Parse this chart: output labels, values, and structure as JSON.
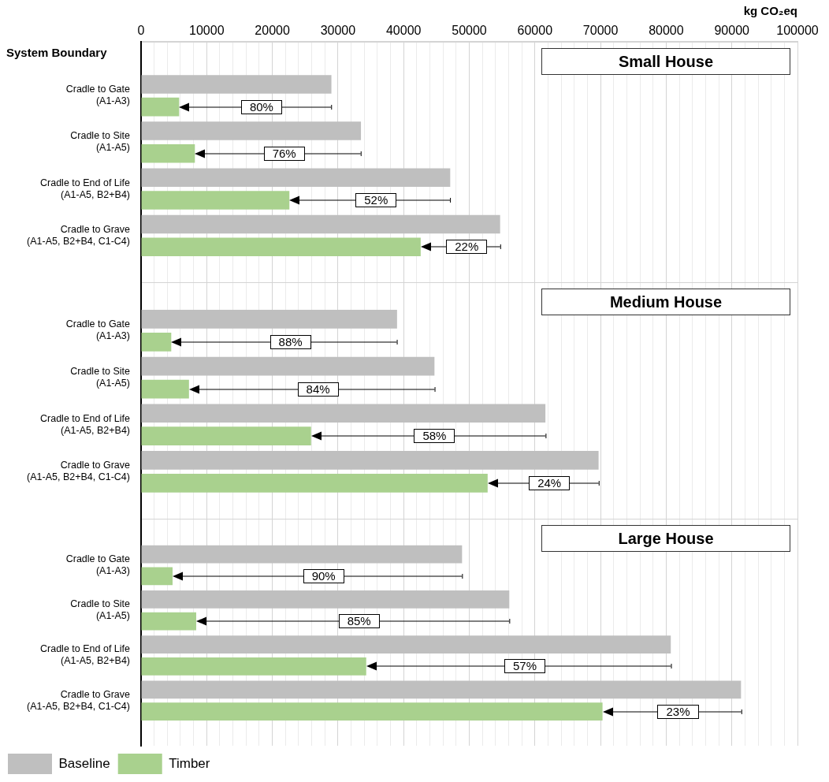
{
  "chart_data": [
    {
      "type": "bar",
      "orientation": "horizontal",
      "title": "Small House",
      "xlabel": "kg CO₂eq",
      "ylabel": "System Boundary",
      "grid": "x",
      "categories": [
        "Cradle to Gate\n(A1-A3)",
        "Cradle to Site\n(A1-A5)",
        "Cradle to End of Life\n(A1-A5, B2+B4)",
        "Cradle to Grave\n(A1-A5, B2+B4, C1-C4)"
      ],
      "series": [
        {
          "color": "#bfbfbf",
          "values": [
            29000,
            33500,
            47100,
            54700
          ]
        },
        {
          "color": "#a9d18e",
          "values": [
            5800,
            8200,
            22600,
            42600
          ]
        }
      ],
      "xlim": [
        0,
        100000
      ],
      "xticks": [
        0,
        {
          "value": 2000,
          "label": null
        },
        {
          "value": 4000,
          "label": null
        },
        {
          "value": 6000,
          "label": null
        },
        {
          "value": 8000,
          "label": null
        },
        10000,
        {
          "value": 12000,
          "label": null
        },
        {
          "value": 14000,
          "label": null
        },
        {
          "value": 16000,
          "label": null
        },
        {
          "value": 18000,
          "label": null
        },
        20000,
        {
          "value": 22000,
          "label": null
        },
        {
          "value": 24000,
          "label": null
        },
        {
          "value": 26000,
          "label": null
        },
        {
          "value": 28000,
          "label": null
        },
        30000,
        {
          "value": 32000,
          "label": null
        },
        {
          "value": 34000,
          "label": null
        },
        {
          "value": 36000,
          "label": null
        },
        {
          "value": 38000,
          "label": null
        },
        40000,
        {
          "value": 42000,
          "label": null
        },
        {
          "value": 44000,
          "label": null
        },
        {
          "value": 46000,
          "label": null
        },
        {
          "value": 48000,
          "label": null
        },
        50000,
        {
          "value": 52000,
          "label": null
        },
        {
          "value": 54000,
          "label": null
        },
        {
          "value": 56000,
          "label": null
        },
        {
          "value": 58000,
          "label": null
        },
        60000,
        {
          "value": 62000,
          "label": null
        },
        {
          "value": 64000,
          "label": null
        },
        {
          "value": 66000,
          "label": null
        },
        {
          "value": 68000,
          "label": null
        },
        70000,
        {
          "value": 72000,
          "label": null
        },
        {
          "value": 74000,
          "label": null
        },
        {
          "value": 76000,
          "label": null
        },
        {
          "value": 78000,
          "label": null
        },
        80000,
        {
          "value": 82000,
          "label": null
        },
        {
          "value": 84000,
          "label": null
        },
        {
          "value": 86000,
          "label": null
        },
        {
          "value": 88000,
          "label": null
        },
        90000,
        {
          "value": 92000,
          "label": null
        },
        {
          "value": 94000,
          "label": null
        },
        {
          "value": 96000,
          "label": null
        },
        {
          "value": 98000,
          "label": null
        },
        100000
      ],
      "annotations": [
        "80%",
        "76%",
        "52%",
        "22%"
      ]
    },
    {
      "type": "bar",
      "orientation": "horizontal",
      "title": "Medium House",
      "grid": "x",
      "tick_labels": "y",
      "categories": [
        "Cradle to Gate\n(A1-A3)",
        "Cradle to Site\n(A1-A5)",
        "Cradle to End of Life\n(A1-A5, B2+B4)",
        "Cradle to Grave\n(A1-A5, B2+B4, C1-C4)"
      ],
      "series": [
        {
          "color": "#bfbfbf",
          "values": [
            39000,
            44700,
            61600,
            69700
          ]
        },
        {
          "color": "#a9d18e",
          "values": [
            4600,
            7300,
            25900,
            52800
          ]
        }
      ],
      "xlim": [
        0,
        100000
      ],
      "xticks": [
        0,
        {
          "value": 2000,
          "label": null
        },
        {
          "value": 4000,
          "label": null
        },
        {
          "value": 6000,
          "label": null
        },
        {
          "value": 8000,
          "label": null
        },
        10000,
        {
          "value": 12000,
          "label": null
        },
        {
          "value": 14000,
          "label": null
        },
        {
          "value": 16000,
          "label": null
        },
        {
          "value": 18000,
          "label": null
        },
        20000,
        {
          "value": 22000,
          "label": null
        },
        {
          "value": 24000,
          "label": null
        },
        {
          "value": 26000,
          "label": null
        },
        {
          "value": 28000,
          "label": null
        },
        30000,
        {
          "value": 32000,
          "label": null
        },
        {
          "value": 34000,
          "label": null
        },
        {
          "value": 36000,
          "label": null
        },
        {
          "value": 38000,
          "label": null
        },
        40000,
        {
          "value": 42000,
          "label": null
        },
        {
          "value": 44000,
          "label": null
        },
        {
          "value": 46000,
          "label": null
        },
        {
          "value": 48000,
          "label": null
        },
        50000,
        {
          "value": 52000,
          "label": null
        },
        {
          "value": 54000,
          "label": null
        },
        {
          "value": 56000,
          "label": null
        },
        {
          "value": 58000,
          "label": null
        },
        60000,
        {
          "value": 62000,
          "label": null
        },
        {
          "value": 64000,
          "label": null
        },
        {
          "value": 66000,
          "label": null
        },
        {
          "value": 68000,
          "label": null
        },
        70000,
        {
          "value": 72000,
          "label": null
        },
        {
          "value": 74000,
          "label": null
        },
        {
          "value": 76000,
          "label": null
        },
        {
          "value": 78000,
          "label": null
        },
        80000,
        {
          "value": 82000,
          "label": null
        },
        {
          "value": 84000,
          "label": null
        },
        {
          "value": 86000,
          "label": null
        },
        {
          "value": 88000,
          "label": null
        },
        90000,
        {
          "value": 92000,
          "label": null
        },
        {
          "value": 94000,
          "label": null
        },
        {
          "value": 96000,
          "label": null
        },
        {
          "value": 98000,
          "label": null
        },
        100000
      ],
      "annotations": [
        "88%",
        "84%",
        "58%",
        "24%"
      ]
    },
    {
      "type": "bar",
      "orientation": "horizontal",
      "title": "Large House",
      "grid": "x",
      "tick_labels": "y",
      "legend": "bottom",
      "categories": [
        "Cradle to Gate\n(A1-A3)",
        "Cradle to Site\n(A1-A5)",
        "Cradle to End of Life\n(A1-A5, B2+B4)",
        "Cradle to Grave\n(A1-A5, B2+B4, C1-C4)"
      ],
      "series": [
        {
          "name": "Baseline",
          "color": "#bfbfbf",
          "values": [
            48900,
            56100,
            80700,
            91400
          ]
        },
        {
          "name": "Timber",
          "color": "#a9d18e",
          "values": [
            4800,
            8400,
            34300,
            70300
          ]
        }
      ],
      "xlim": [
        0,
        100000
      ],
      "xticks": [
        0,
        {
          "value": 2000,
          "label": null
        },
        {
          "value": 4000,
          "label": null
        },
        {
          "value": 6000,
          "label": null
        },
        {
          "value": 8000,
          "label": null
        },
        10000,
        {
          "value": 12000,
          "label": null
        },
        {
          "value": 14000,
          "label": null
        },
        {
          "value": 16000,
          "label": null
        },
        {
          "value": 18000,
          "label": null
        },
        20000,
        {
          "value": 22000,
          "label": null
        },
        {
          "value": 24000,
          "label": null
        },
        {
          "value": 26000,
          "label": null
        },
        {
          "value": 28000,
          "label": null
        },
        30000,
        {
          "value": 32000,
          "label": null
        },
        {
          "value": 34000,
          "label": null
        },
        {
          "value": 36000,
          "label": null
        },
        {
          "value": 38000,
          "label": null
        },
        40000,
        {
          "value": 42000,
          "label": null
        },
        {
          "value": 44000,
          "label": null
        },
        {
          "value": 46000,
          "label": null
        },
        {
          "value": 48000,
          "label": null
        },
        50000,
        {
          "value": 52000,
          "label": null
        },
        {
          "value": 54000,
          "label": null
        },
        {
          "value": 56000,
          "label": null
        },
        {
          "value": 58000,
          "label": null
        },
        60000,
        {
          "value": 62000,
          "label": null
        },
        {
          "value": 64000,
          "label": null
        },
        {
          "value": 66000,
          "label": null
        },
        {
          "value": 68000,
          "label": null
        },
        70000,
        {
          "value": 72000,
          "label": null
        },
        {
          "value": 74000,
          "label": null
        },
        {
          "value": 76000,
          "label": null
        },
        {
          "value": 78000,
          "label": null
        },
        80000,
        {
          "value": 82000,
          "label": null
        },
        {
          "value": 84000,
          "label": null
        },
        {
          "value": 86000,
          "label": null
        },
        {
          "value": 88000,
          "label": null
        },
        90000,
        {
          "value": 92000,
          "label": null
        },
        {
          "value": 94000,
          "label": null
        },
        {
          "value": 96000,
          "label": null
        },
        {
          "value": 98000,
          "label": null
        },
        100000
      ],
      "annotations": [
        "90%",
        "85%",
        "57%",
        "23%"
      ]
    }
  ]
}
